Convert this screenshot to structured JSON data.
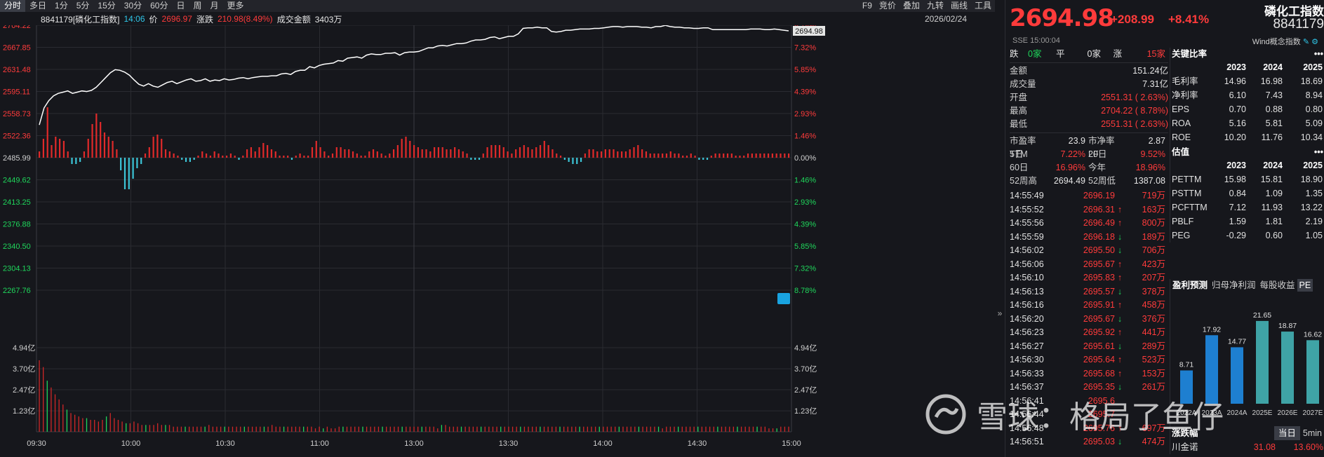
{
  "toolbar": {
    "periods": [
      "分时",
      "多日",
      "1分",
      "5分",
      "15分",
      "30分",
      "60分",
      "日",
      "周",
      "月",
      "更多"
    ],
    "active_period": "分时",
    "tools": [
      "F9",
      "竞价",
      "叠加",
      "九转",
      "画线",
      "工具"
    ]
  },
  "infobar": {
    "code_name": "8841179[磷化工指数]",
    "time": "14:06",
    "price_label": "价",
    "price": "2696.97",
    "change_label": "涨跌",
    "change": "210.98(8.49%)",
    "turnover_label": "成交金额",
    "turnover": "3403万",
    "date": "2026/02/24"
  },
  "chart_data": [
    {
      "type": "line",
      "y_axis_left": [
        "2704.22",
        "2667.85",
        "2631.48",
        "2595.11",
        "2558.73",
        "2522.36",
        "2485.99",
        "2449.62",
        "2413.25",
        "2376.88",
        "2340.50",
        "2304.13",
        "2267.76"
      ],
      "y_axis_right": [
        "8.78%",
        "7.32%",
        "5.85%",
        "4.39%",
        "2.93%",
        "1.46%",
        "0.00%",
        "1.46%",
        "2.93%",
        "4.39%",
        "5.85%",
        "7.32%",
        "8.78%"
      ],
      "ylim": [
        2267.76,
        2704.22
      ],
      "prev_close": 2485.99,
      "x_labels": [
        "09:30",
        "10:00",
        "10:30",
        "11:00",
        "13:00",
        "13:30",
        "14:00",
        "14:30",
        "15:00"
      ],
      "last_price_tag": "2694.98",
      "series": [
        {
          "values": [
            2540,
            2568,
            2580,
            2588,
            2592,
            2594,
            2596,
            2592,
            2594,
            2596,
            2595,
            2597,
            2602,
            2610,
            2618,
            2626,
            2631,
            2630,
            2627,
            2622,
            2614,
            2607,
            2604,
            2608,
            2604,
            2602,
            2606,
            2610,
            2612,
            2608,
            2611,
            2614,
            2616,
            2612,
            2613,
            2616,
            2612,
            2614,
            2613,
            2616,
            2614,
            2615,
            2617,
            2618,
            2616,
            2618,
            2619,
            2620,
            2620,
            2621,
            2621,
            2624,
            2625,
            2623,
            2628,
            2630,
            2630,
            2636,
            2634,
            2638,
            2640,
            2641,
            2642,
            2646,
            2645,
            2650,
            2651,
            2652,
            2650,
            2655,
            2657,
            2656,
            2656,
            2658,
            2658,
            2659,
            2655,
            2659,
            2660,
            2660,
            2661,
            2664,
            2667,
            2667,
            2670,
            2671,
            2670,
            2672,
            2674,
            2674,
            2675,
            2678,
            2680,
            2680,
            2681,
            2684,
            2685,
            2682,
            2684,
            2686,
            2686,
            2690,
            2699,
            2700,
            2700,
            2701,
            2700,
            2700,
            2694,
            2693,
            2694,
            2696,
            2696,
            2697,
            2698,
            2698,
            2698,
            2699,
            2699,
            2700,
            2701,
            2702,
            2702,
            2701,
            2702,
            2702,
            2702,
            2701,
            2701,
            2700,
            2702,
            2702,
            2704,
            2702,
            2701,
            2701,
            2700,
            2700,
            2699,
            2699,
            2700,
            2700,
            2697,
            2697,
            2697,
            2697,
            2697,
            2697,
            2697,
            2697,
            2698,
            2698,
            2698,
            2697,
            2697,
            2698,
            2697,
            2696,
            2695
          ]
        }
      ]
    },
    {
      "type": "bar",
      "name": "momentum",
      "values": [
        0.3,
        0.9,
        2.4,
        0.6,
        1.0,
        0.9,
        0.8,
        0.3,
        -0.3,
        -0.3,
        -0.2,
        0.3,
        0.9,
        1.6,
        2.1,
        1.7,
        1.2,
        1.0,
        0.8,
        0.4,
        -0.6,
        -1.5,
        -1.5,
        -1.0,
        -0.5,
        -0.3,
        0.2,
        0.5,
        1.0,
        1.1,
        0.9,
        0.4,
        0.3,
        0.2,
        0.1,
        -0.1,
        -0.2,
        -0.2,
        -0.1,
        0.1,
        0.3,
        0.2,
        0.1,
        0.3,
        0.2,
        0.1,
        0.1,
        0.2,
        0.1,
        -0.1,
        0.1,
        0.4,
        0.5,
        0.3,
        0.5,
        0.7,
        0.6,
        0.4,
        0.3,
        0.1,
        0.1,
        0.1,
        -0.1,
        0.1,
        0.2,
        0.1,
        0.1,
        0.5,
        0.8,
        0.5,
        0.3,
        0.1,
        0.2,
        0.5,
        0.5,
        0.4,
        0.4,
        0.3,
        0.2,
        0.1,
        0.1,
        0.3,
        0.4,
        0.3,
        0.2,
        0.1,
        0.2,
        0.4,
        0.6,
        0.9,
        1.0,
        0.8,
        0.6,
        0.5,
        0.4,
        0.4,
        0.3,
        0.5,
        0.5,
        0.5,
        0.4,
        0.4,
        0.5,
        0.4,
        0.3,
        0.2,
        -0.1,
        -0.1,
        -0.1,
        0.2,
        0.5,
        0.6,
        0.6,
        0.6,
        0.5,
        0.3,
        0.2,
        0.4,
        0.5,
        0.6,
        0.5,
        0.4,
        0.5,
        0.6,
        0.8,
        0.6,
        0.4,
        0.2,
        0.1,
        -0.1,
        -0.2,
        -0.3,
        -0.3,
        -0.2,
        0.2,
        0.4,
        0.4,
        0.3,
        0.3,
        0.4,
        0.4,
        0.4,
        0.3,
        0.3,
        0.3,
        0.4,
        0.5,
        0.6,
        0.4,
        0.3,
        0.2,
        0.2,
        0.2,
        0.2,
        0.2,
        0.3,
        0.2,
        0.2,
        0.1,
        0.1,
        0.2,
        0.1,
        -0.1,
        -0.1,
        -0.1,
        0.1,
        0.2,
        0.2,
        0.2,
        0.2,
        0.2,
        0.1,
        0.1,
        0.1,
        0.2,
        0.2,
        0.2,
        0.2,
        0.2,
        0.2,
        0.2,
        0.2,
        0.2,
        0.2,
        0.2
      ]
    },
    {
      "type": "bar",
      "name": "volume",
      "y_axis_left": [
        "4.94亿",
        "3.70亿",
        "2.47亿",
        "1.23亿"
      ],
      "y_axis_right": [
        "4.94亿",
        "3.70亿",
        "2.47亿",
        "1.23亿"
      ],
      "ylim": [
        0,
        4.94
      ],
      "values": [
        4.2,
        3.8,
        3.0,
        2.6,
        2.2,
        1.9,
        1.6,
        1.3,
        1.1,
        1.0,
        0.9,
        0.8,
        0.8,
        0.7,
        0.7,
        0.6,
        0.7,
        0.9,
        1.1,
        0.8,
        0.7,
        0.6,
        0.5,
        0.5,
        0.6,
        0.5,
        0.4,
        0.4,
        0.4,
        0.4,
        0.5,
        0.4,
        0.4,
        0.4,
        0.3,
        0.3,
        0.3,
        0.3,
        0.3,
        0.3,
        0.3,
        0.3,
        0.3,
        0.4,
        0.3,
        0.3,
        0.3,
        0.3,
        0.3,
        0.3,
        0.3,
        0.3,
        0.3,
        0.3,
        0.3,
        0.3,
        0.3,
        0.3,
        0.3,
        0.4,
        0.3,
        0.3,
        0.3,
        0.3,
        0.3,
        0.3,
        0.3,
        0.3,
        0.3,
        0.3,
        0.2,
        0.3,
        0.2,
        0.3,
        0.2,
        0.2,
        0.3,
        0.3,
        0.3,
        0.3,
        0.3,
        0.3,
        0.3,
        0.3,
        0.3,
        0.3,
        0.3,
        0.3,
        0.3,
        0.3,
        0.3,
        0.3,
        0.3,
        0.3,
        0.3,
        0.3,
        0.3,
        0.3,
        0.3,
        0.3,
        0.3,
        0.2,
        0.4,
        0.4,
        0.3,
        0.3,
        0.3,
        0.3,
        0.3,
        0.3,
        0.3,
        0.3,
        0.3,
        0.3,
        0.3,
        0.3,
        0.3,
        0.3,
        0.3,
        0.3,
        0.3,
        0.3,
        0.3,
        0.3,
        0.3,
        0.3,
        0.3,
        0.3,
        0.3,
        0.3,
        0.3,
        0.3,
        0.3,
        0.3,
        0.3,
        0.3,
        0.3,
        0.3,
        0.3,
        0.3,
        0.3,
        0.3,
        0.3,
        0.3,
        0.3,
        0.3,
        0.3,
        0.3,
        0.3,
        0.3,
        0.3,
        0.3,
        0.3,
        0.3,
        0.3,
        0.3,
        0.3,
        0.3,
        0.2,
        0.3,
        0.3,
        0.3,
        0.3,
        0.3,
        0.3,
        0.3,
        0.3,
        0.3,
        0.3,
        0.3,
        0.3,
        0.3,
        0.3,
        0.3,
        0.3,
        0.3,
        0.3,
        0.3,
        0.3,
        0.3,
        0.3,
        0.3,
        0.3,
        0.3,
        0.3,
        0.2,
        0.2,
        0.2,
        0.3,
        0.3,
        0.3
      ]
    }
  ],
  "quote": {
    "price": "2694.98",
    "change": "+208.99",
    "pct": "+8.41%",
    "name": "磷化工指数",
    "code": "8841179",
    "sub": "SSE  15:00:04",
    "concept": "Wind概念指数"
  },
  "stats": {
    "adv_label": "跌",
    "adv_val": "0家",
    "flat_label": "平",
    "flat_val": "0家",
    "up_label": "涨",
    "up_val": "15家",
    "rows": [
      {
        "k": "金额",
        "v": "151.24亿",
        "c": "white"
      },
      {
        "k": "成交量",
        "v": "7.31亿",
        "c": "white"
      },
      {
        "k": "开盘",
        "v": "2551.31 ( 2.63%)",
        "c": "red"
      },
      {
        "k": "最高",
        "v": "2704.22 ( 8.78%)",
        "c": "red"
      },
      {
        "k": "最低",
        "v": "2551.31 ( 2.63%)",
        "c": "red"
      }
    ],
    "pe_label": "市盈率TTM",
    "pe_val": "23.9",
    "pb_label": "市净率LF",
    "pb_val": "2.87",
    "d5_label": "5日",
    "d5_val": "7.22%",
    "d20_label": "20日",
    "d20_val": "9.52%",
    "d60_label": "60日",
    "d60_val": "16.96%",
    "ytd_label": "今年",
    "ytd_val": "18.96%",
    "hi52_label": "52周高",
    "hi52_val": "2694.49",
    "lo52_label": "52周低",
    "lo52_val": "1387.08"
  },
  "ticks": [
    {
      "t": "14:55:49",
      "p": "2696.19",
      "d": "",
      "v": "719万"
    },
    {
      "t": "14:55:52",
      "p": "2696.31",
      "d": "up",
      "v": "163万"
    },
    {
      "t": "14:55:56",
      "p": "2696.49",
      "d": "up",
      "v": "800万"
    },
    {
      "t": "14:55:59",
      "p": "2696.18",
      "d": "down",
      "v": "189万"
    },
    {
      "t": "14:56:02",
      "p": "2695.50",
      "d": "down",
      "v": "706万"
    },
    {
      "t": "14:56:06",
      "p": "2695.67",
      "d": "up",
      "v": "423万"
    },
    {
      "t": "14:56:10",
      "p": "2695.83",
      "d": "up",
      "v": "207万"
    },
    {
      "t": "14:56:13",
      "p": "2695.57",
      "d": "down",
      "v": "378万"
    },
    {
      "t": "14:56:16",
      "p": "2695.91",
      "d": "up",
      "v": "458万"
    },
    {
      "t": "14:56:20",
      "p": "2695.67",
      "d": "down",
      "v": "376万"
    },
    {
      "t": "14:56:23",
      "p": "2695.92",
      "d": "up",
      "v": "441万"
    },
    {
      "t": "14:56:27",
      "p": "2695.61",
      "d": "down",
      "v": "289万"
    },
    {
      "t": "14:56:30",
      "p": "2695.64",
      "d": "up",
      "v": "523万"
    },
    {
      "t": "14:56:33",
      "p": "2695.68",
      "d": "up",
      "v": "153万"
    },
    {
      "t": "14:56:37",
      "p": "2695.35",
      "d": "down",
      "v": "261万"
    },
    {
      "t": "14:56:41",
      "p": "2695.6",
      "d": "",
      "v": ""
    },
    {
      "t": "14:56:44",
      "p": "2695.7",
      "d": "",
      "v": ""
    },
    {
      "t": "14:56:48",
      "p": "2695.76",
      "d": "up",
      "v": "697万"
    },
    {
      "t": "14:56:51",
      "p": "2695.03",
      "d": "down",
      "v": "474万"
    }
  ],
  "ratios": {
    "title": "关键比率",
    "years": [
      "2023",
      "2024",
      "2025"
    ],
    "rows": [
      {
        "k": "毛利率",
        "v": [
          "14.96",
          "16.98",
          "18.69"
        ]
      },
      {
        "k": "净利率",
        "v": [
          "6.10",
          "7.43",
          "8.94"
        ]
      },
      {
        "k": "EPS",
        "v": [
          "0.70",
          "0.88",
          "0.80"
        ]
      },
      {
        "k": "ROA",
        "v": [
          "5.16",
          "5.81",
          "5.09"
        ]
      },
      {
        "k": "ROE",
        "v": [
          "10.20",
          "11.76",
          "10.34"
        ]
      }
    ]
  },
  "valuation": {
    "title": "估值",
    "years": [
      "2023",
      "2024",
      "2025"
    ],
    "rows": [
      {
        "k": "PETTM",
        "v": [
          "15.98",
          "15.81",
          "18.90"
        ]
      },
      {
        "k": "PSTTM",
        "v": [
          "0.84",
          "1.09",
          "1.35"
        ]
      },
      {
        "k": "PCFTTM",
        "v": [
          "7.12",
          "11.93",
          "13.22"
        ]
      },
      {
        "k": "PBLF",
        "v": [
          "1.59",
          "1.81",
          "2.19"
        ]
      },
      {
        "k": "PEG",
        "v": [
          "-0.29",
          "0.60",
          "1.05"
        ]
      }
    ]
  },
  "forecast": {
    "tabs": [
      "盈利预测",
      "归母净利润",
      "每股收益",
      "PE"
    ],
    "chart": {
      "type": "bar",
      "categories": [
        "2022A",
        "2023A",
        "2024A",
        "2025E",
        "2026E",
        "2027E"
      ],
      "values": [
        8.71,
        17.92,
        14.77,
        21.65,
        18.87,
        16.62
      ],
      "labels": [
        "8.71",
        "17.92",
        "14.77",
        "21.65",
        "18.87",
        "16.62"
      ],
      "colors": [
        "#1e7fd0",
        "#1e7fd0",
        "#1e7fd0",
        "#3fa3a6",
        "#3fa3a6",
        "#3fa3a6"
      ]
    }
  },
  "leader": {
    "title": "涨跌幅",
    "tab_today": "当日",
    "tab_5min": "5min",
    "rows": [
      {
        "n": "川金诺",
        "p": "31.08",
        "c": "13.60%"
      }
    ]
  },
  "watermark": {
    "text": "雪球：格局了鱼仔"
  },
  "colors": {
    "up": "#ff3b3b",
    "down": "#1fd65b",
    "price_line": "#ffffff",
    "neg_bar": "#3cc6d8",
    "bg": "#16171c"
  }
}
